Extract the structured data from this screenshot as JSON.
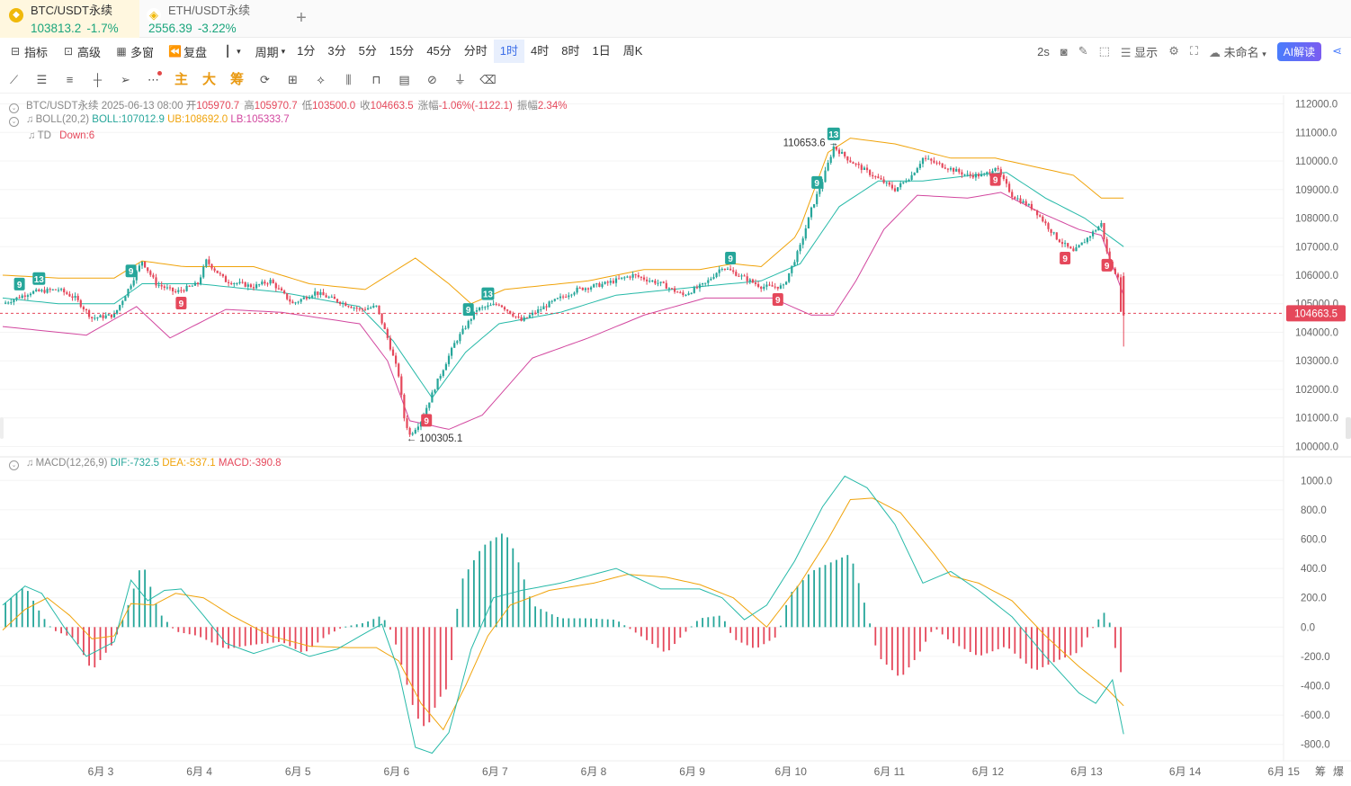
{
  "tabs": [
    {
      "name": "BTC/USDT永续",
      "price": "103813.2",
      "change": "-1.7%",
      "active": true
    },
    {
      "name": "ETH/USDT永续",
      "price": "2556.39",
      "change": "-3.22%",
      "active": false
    }
  ],
  "add_tab": "+",
  "toolbar": {
    "indicators": "指标",
    "advanced": "高级",
    "multi_window": "多窗",
    "replay": "复盘",
    "period_label": "周期",
    "periods": [
      "1分",
      "3分",
      "5分",
      "15分",
      "45分",
      "分时",
      "1时",
      "4时",
      "8时",
      "1日",
      "周K"
    ],
    "active_period": "1时",
    "refresh": "2s",
    "display": "显示",
    "layout_name": "未命名",
    "ai_button": "AI解读"
  },
  "draw_tools": {
    "main": "主",
    "big": "大",
    "chips": "筹"
  },
  "ohlc": {
    "symbol": "BTC/USDT永续",
    "time": "2025-06-13 08:00",
    "open_label": "开",
    "open": "105970.7",
    "high_label": "高",
    "high": "105970.7",
    "low_label": "低",
    "low": "103500.0",
    "close_label": "收",
    "close": "104663.5",
    "change_label": "涨幅",
    "change": "-1.06%(-1122.1)",
    "amp_label": "振幅",
    "amp": "2.34%"
  },
  "boll": {
    "name": "BOLL(20,2)",
    "boll": "BOLL:107012.9",
    "ub": "UB:108692.0",
    "lb": "LB:105333.7"
  },
  "td": {
    "name": "TD",
    "value": "Down:6"
  },
  "macd_info": {
    "name": "MACD(12,26,9)",
    "dif": "DIF:-732.5",
    "dea": "DEA:-537.1",
    "macd": "MACD:-390.8"
  },
  "labels": {
    "high": "110653.6",
    "low": "100305.1",
    "current_price": "104663.5"
  },
  "x_axis": [
    "6月 3",
    "6月 4",
    "6月 5",
    "6月 6",
    "6月 7",
    "6月 8",
    "6月 9",
    "6月 10",
    "6月 11",
    "6月 12",
    "6月 13",
    "6月 14",
    "6月 15"
  ],
  "bottom_right": [
    "筹",
    "爆"
  ],
  "colors": {
    "up": "#26a69a",
    "down": "#e5485b",
    "boll_mid": "#26b9a8",
    "boll_ub": "#f0a30a",
    "boll_lb": "#d2479f",
    "dea": "#f0a30a",
    "dif": "#26b9a8"
  },
  "chart_data": [
    {
      "type": "candlestick",
      "title": "BTC/USDT永续 1时",
      "y_ticks": [
        112000.0,
        111000.0,
        110000.0,
        109000.0,
        108000.0,
        107000.0,
        106000.0,
        105000.0,
        104000.0,
        103000.0,
        102000.0,
        101000.0,
        100000.0
      ],
      "ylim": [
        99700,
        112300
      ],
      "x_categories": [
        "6月 3",
        "6月 4",
        "6月 5",
        "6月 6",
        "6月 7",
        "6月 8",
        "6月 9",
        "6月 10",
        "6月 11",
        "6月 12",
        "6月 13",
        "6月 14",
        "6月 15"
      ],
      "close_path": [
        [
          0,
          105000
        ],
        [
          10,
          105400
        ],
        [
          20,
          105500
        ],
        [
          26,
          105200
        ],
        [
          32,
          104500
        ],
        [
          40,
          104600
        ],
        [
          45,
          105500
        ],
        [
          50,
          106500
        ],
        [
          55,
          105700
        ],
        [
          62,
          105400
        ],
        [
          70,
          105700
        ],
        [
          73,
          106500
        ],
        [
          80,
          105800
        ],
        [
          90,
          105600
        ],
        [
          96,
          105800
        ],
        [
          104,
          105000
        ],
        [
          112,
          105400
        ],
        [
          120,
          105100
        ],
        [
          128,
          104800
        ],
        [
          134,
          104900
        ],
        [
          138,
          103800
        ],
        [
          142,
          102500
        ],
        [
          144,
          101000
        ],
        [
          146,
          100400
        ],
        [
          150,
          100900
        ],
        [
          156,
          102300
        ],
        [
          162,
          103600
        ],
        [
          170,
          104800
        ],
        [
          178,
          105000
        ],
        [
          186,
          104400
        ],
        [
          196,
          105000
        ],
        [
          206,
          105500
        ],
        [
          216,
          105700
        ],
        [
          226,
          106000
        ],
        [
          236,
          105700
        ],
        [
          244,
          105300
        ],
        [
          252,
          105700
        ],
        [
          258,
          106300
        ],
        [
          264,
          106000
        ],
        [
          272,
          105600
        ],
        [
          280,
          105600
        ],
        [
          286,
          107000
        ],
        [
          290,
          108300
        ],
        [
          294,
          109300
        ],
        [
          298,
          110500
        ],
        [
          304,
          110000
        ],
        [
          312,
          109500
        ],
        [
          320,
          109000
        ],
        [
          326,
          109500
        ],
        [
          330,
          110100
        ],
        [
          338,
          109800
        ],
        [
          346,
          109500
        ],
        [
          352,
          109500
        ],
        [
          356,
          109800
        ],
        [
          362,
          108800
        ],
        [
          370,
          108300
        ],
        [
          378,
          107300
        ],
        [
          384,
          106800
        ],
        [
          390,
          107400
        ],
        [
          394,
          107800
        ],
        [
          396,
          106800
        ],
        [
          398,
          106200
        ],
        [
          400,
          106000
        ],
        [
          401,
          104663.5
        ]
      ],
      "boll_ub_path": [
        [
          0,
          106000
        ],
        [
          20,
          105900
        ],
        [
          40,
          105900
        ],
        [
          50,
          106500
        ],
        [
          65,
          106300
        ],
        [
          90,
          106300
        ],
        [
          110,
          105700
        ],
        [
          130,
          105500
        ],
        [
          148,
          106600
        ],
        [
          160,
          105700
        ],
        [
          168,
          105000
        ],
        [
          180,
          105500
        ],
        [
          210,
          105800
        ],
        [
          230,
          106200
        ],
        [
          250,
          106200
        ],
        [
          262,
          106400
        ],
        [
          272,
          106300
        ],
        [
          285,
          107400
        ],
        [
          296,
          110300
        ],
        [
          304,
          110800
        ],
        [
          320,
          110600
        ],
        [
          340,
          110100
        ],
        [
          356,
          110100
        ],
        [
          370,
          109800
        ],
        [
          384,
          109500
        ],
        [
          394,
          108700
        ],
        [
          402,
          108700
        ]
      ],
      "boll_mid_path": [
        [
          0,
          105200
        ],
        [
          20,
          105000
        ],
        [
          40,
          105000
        ],
        [
          50,
          105700
        ],
        [
          70,
          105700
        ],
        [
          100,
          105400
        ],
        [
          128,
          104900
        ],
        [
          140,
          103700
        ],
        [
          154,
          101700
        ],
        [
          166,
          103300
        ],
        [
          178,
          104300
        ],
        [
          200,
          104700
        ],
        [
          220,
          105300
        ],
        [
          250,
          105600
        ],
        [
          272,
          105800
        ],
        [
          286,
          106400
        ],
        [
          300,
          108400
        ],
        [
          314,
          109300
        ],
        [
          330,
          109300
        ],
        [
          348,
          109500
        ],
        [
          360,
          109600
        ],
        [
          374,
          108700
        ],
        [
          388,
          108000
        ],
        [
          402,
          107000
        ]
      ],
      "boll_lb_path": [
        [
          0,
          104200
        ],
        [
          20,
          104000
        ],
        [
          30,
          103900
        ],
        [
          48,
          104900
        ],
        [
          60,
          103800
        ],
        [
          80,
          104800
        ],
        [
          100,
          104700
        ],
        [
          128,
          104300
        ],
        [
          138,
          103000
        ],
        [
          146,
          100900
        ],
        [
          160,
          100600
        ],
        [
          172,
          101100
        ],
        [
          190,
          103100
        ],
        [
          210,
          103800
        ],
        [
          230,
          104600
        ],
        [
          252,
          105200
        ],
        [
          276,
          105200
        ],
        [
          290,
          104600
        ],
        [
          298,
          104600
        ],
        [
          306,
          105800
        ],
        [
          316,
          107600
        ],
        [
          328,
          108800
        ],
        [
          346,
          108700
        ],
        [
          358,
          108900
        ],
        [
          372,
          108200
        ],
        [
          386,
          107600
        ],
        [
          394,
          107400
        ],
        [
          402,
          105300
        ]
      ],
      "td_marks": [
        {
          "i": 6,
          "text": "9",
          "dir": "up"
        },
        {
          "i": 13,
          "text": "13",
          "dir": "up"
        },
        {
          "i": 46,
          "text": "9",
          "dir": "up"
        },
        {
          "i": 64,
          "text": "9",
          "dir": "down"
        },
        {
          "i": 152,
          "text": "9",
          "dir": "down"
        },
        {
          "i": 167,
          "text": "9",
          "dir": "up"
        },
        {
          "i": 174,
          "text": "13",
          "dir": "up"
        },
        {
          "i": 261,
          "text": "9",
          "dir": "up"
        },
        {
          "i": 278,
          "text": "9",
          "dir": "down"
        },
        {
          "i": 292,
          "text": "9",
          "dir": "up"
        },
        {
          "i": 298,
          "text": "13",
          "dir": "up"
        },
        {
          "i": 356,
          "text": "9",
          "dir": "down"
        },
        {
          "i": 381,
          "text": "9",
          "dir": "down"
        },
        {
          "i": 396,
          "text": "9",
          "dir": "down"
        }
      ]
    },
    {
      "type": "bar",
      "title": "MACD(12,26,9)",
      "y_ticks": [
        1000.0,
        800.0,
        600.0,
        400.0,
        200.0,
        0.0,
        -200.0,
        -400.0,
        -600.0,
        -800.0
      ],
      "ylim": [
        -900,
        1100
      ],
      "macd_path": [
        [
          0,
          150
        ],
        [
          8,
          280
        ],
        [
          14,
          80
        ],
        [
          18,
          -20
        ],
        [
          26,
          -80
        ],
        [
          32,
          -300
        ],
        [
          40,
          -100
        ],
        [
          46,
          200
        ],
        [
          50,
          450
        ],
        [
          56,
          100
        ],
        [
          62,
          -30
        ],
        [
          70,
          -60
        ],
        [
          80,
          -150
        ],
        [
          90,
          -120
        ],
        [
          100,
          -100
        ],
        [
          108,
          -180
        ],
        [
          116,
          -60
        ],
        [
          122,
          0
        ],
        [
          130,
          30
        ],
        [
          136,
          80
        ],
        [
          140,
          -50
        ],
        [
          148,
          -600
        ],
        [
          152,
          -700
        ],
        [
          156,
          -500
        ],
        [
          160,
          -400
        ],
        [
          164,
          300
        ],
        [
          172,
          550
        ],
        [
          180,
          650
        ],
        [
          184,
          500
        ],
        [
          190,
          150
        ],
        [
          200,
          60
        ],
        [
          210,
          60
        ],
        [
          220,
          50
        ],
        [
          228,
          -50
        ],
        [
          238,
          -180
        ],
        [
          244,
          -50
        ],
        [
          250,
          60
        ],
        [
          258,
          80
        ],
        [
          262,
          -80
        ],
        [
          270,
          -150
        ],
        [
          278,
          -60
        ],
        [
          282,
          220
        ],
        [
          290,
          380
        ],
        [
          298,
          450
        ],
        [
          304,
          500
        ],
        [
          310,
          100
        ],
        [
          314,
          -200
        ],
        [
          322,
          -350
        ],
        [
          328,
          -200
        ],
        [
          334,
          0
        ],
        [
          340,
          -100
        ],
        [
          350,
          -200
        ],
        [
          360,
          -130
        ],
        [
          370,
          -300
        ],
        [
          378,
          -230
        ],
        [
          386,
          -170
        ],
        [
          392,
          30
        ],
        [
          396,
          120
        ],
        [
          398,
          -60
        ],
        [
          402,
          -390
        ]
      ],
      "dif_path": [
        [
          0,
          150
        ],
        [
          8,
          280
        ],
        [
          14,
          230
        ],
        [
          22,
          0
        ],
        [
          30,
          -200
        ],
        [
          40,
          -100
        ],
        [
          46,
          320
        ],
        [
          52,
          180
        ],
        [
          58,
          250
        ],
        [
          64,
          260
        ],
        [
          72,
          80
        ],
        [
          80,
          -110
        ],
        [
          90,
          -180
        ],
        [
          100,
          -120
        ],
        [
          110,
          -200
        ],
        [
          120,
          -150
        ],
        [
          132,
          -20
        ],
        [
          136,
          20
        ],
        [
          142,
          -300
        ],
        [
          148,
          -820
        ],
        [
          154,
          -860
        ],
        [
          160,
          -720
        ],
        [
          168,
          -150
        ],
        [
          176,
          200
        ],
        [
          186,
          250
        ],
        [
          200,
          300
        ],
        [
          220,
          400
        ],
        [
          236,
          260
        ],
        [
          250,
          260
        ],
        [
          258,
          200
        ],
        [
          266,
          50
        ],
        [
          274,
          150
        ],
        [
          284,
          450
        ],
        [
          294,
          820
        ],
        [
          302,
          1030
        ],
        [
          310,
          950
        ],
        [
          320,
          700
        ],
        [
          330,
          300
        ],
        [
          340,
          380
        ],
        [
          350,
          250
        ],
        [
          362,
          70
        ],
        [
          374,
          -200
        ],
        [
          386,
          -450
        ],
        [
          392,
          -520
        ],
        [
          398,
          -360
        ],
        [
          402,
          -730
        ]
      ],
      "dea_path": [
        [
          0,
          -20
        ],
        [
          8,
          120
        ],
        [
          16,
          200
        ],
        [
          24,
          80
        ],
        [
          32,
          -80
        ],
        [
          40,
          -60
        ],
        [
          46,
          160
        ],
        [
          54,
          150
        ],
        [
          62,
          230
        ],
        [
          72,
          200
        ],
        [
          82,
          80
        ],
        [
          96,
          -60
        ],
        [
          110,
          -130
        ],
        [
          124,
          -140
        ],
        [
          134,
          -140
        ],
        [
          142,
          -230
        ],
        [
          150,
          -520
        ],
        [
          158,
          -700
        ],
        [
          166,
          -400
        ],
        [
          174,
          -60
        ],
        [
          182,
          150
        ],
        [
          196,
          250
        ],
        [
          212,
          300
        ],
        [
          224,
          360
        ],
        [
          238,
          340
        ],
        [
          250,
          290
        ],
        [
          262,
          200
        ],
        [
          274,
          0
        ],
        [
          286,
          300
        ],
        [
          296,
          600
        ],
        [
          304,
          870
        ],
        [
          312,
          880
        ],
        [
          322,
          780
        ],
        [
          334,
          500
        ],
        [
          340,
          350
        ],
        [
          350,
          300
        ],
        [
          362,
          180
        ],
        [
          374,
          -60
        ],
        [
          386,
          -270
        ],
        [
          396,
          -420
        ],
        [
          402,
          -537
        ]
      ]
    }
  ]
}
